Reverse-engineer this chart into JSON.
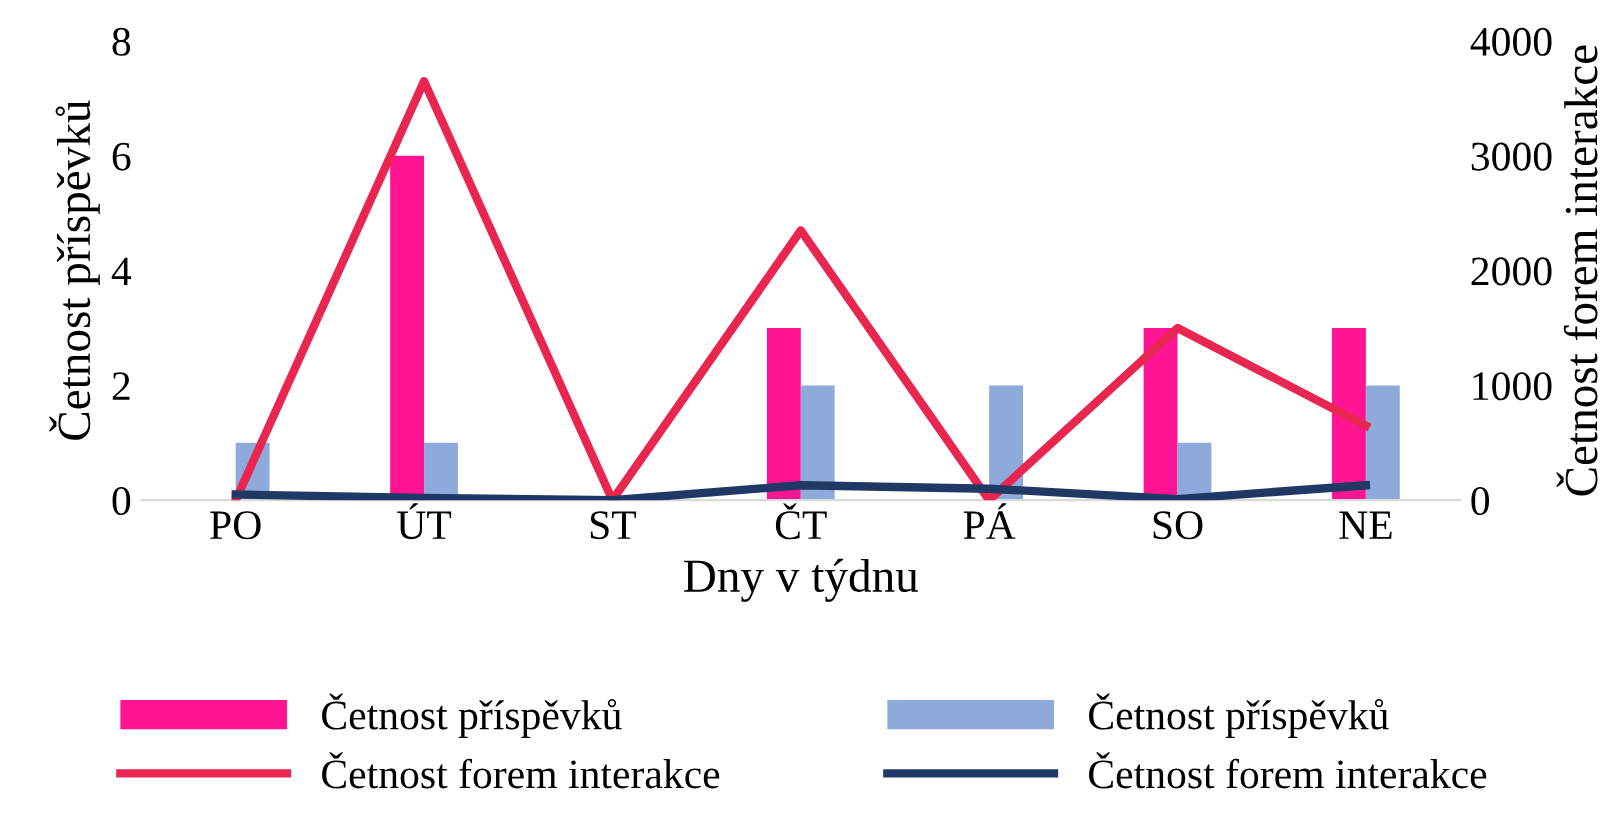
{
  "chart_data": {
    "type": "bar",
    "xlabel": "Dny v týdnu",
    "ylabel": "Četnost příspěvků",
    "y2label": "Četnost forem interakce",
    "categories": [
      "PO",
      "ÚT",
      "ST",
      "ČT",
      "PÁ",
      "SO",
      "NE"
    ],
    "series": [
      {
        "name": "Četnost příspěvků",
        "color": "#ff1493",
        "values": [
          0,
          6,
          0,
          3,
          0,
          3,
          3
        ]
      },
      {
        "name": "Četnost příspěvků",
        "color": "#8eaadb",
        "values": [
          1,
          1,
          0,
          2,
          2,
          1,
          2
        ]
      },
      {
        "name": "Četnost forem interakce",
        "type": "line",
        "axis": "y2",
        "color": "#e8264f",
        "values": [
          0,
          3650,
          0,
          2350,
          0,
          1500,
          650
        ]
      },
      {
        "name": "Četnost forem interakce",
        "type": "line",
        "axis": "y2",
        "color": "#1f3864",
        "values": [
          50,
          20,
          0,
          130,
          100,
          10,
          130
        ]
      }
    ],
    "ylim": [
      0,
      8
    ],
    "yticks": [
      0,
      2,
      4,
      6,
      8
    ],
    "y2lim": [
      0,
      4000
    ],
    "y2ticks": [
      0,
      1000,
      2000,
      3000,
      4000
    ],
    "grid": false,
    "legend": "bottom"
  }
}
